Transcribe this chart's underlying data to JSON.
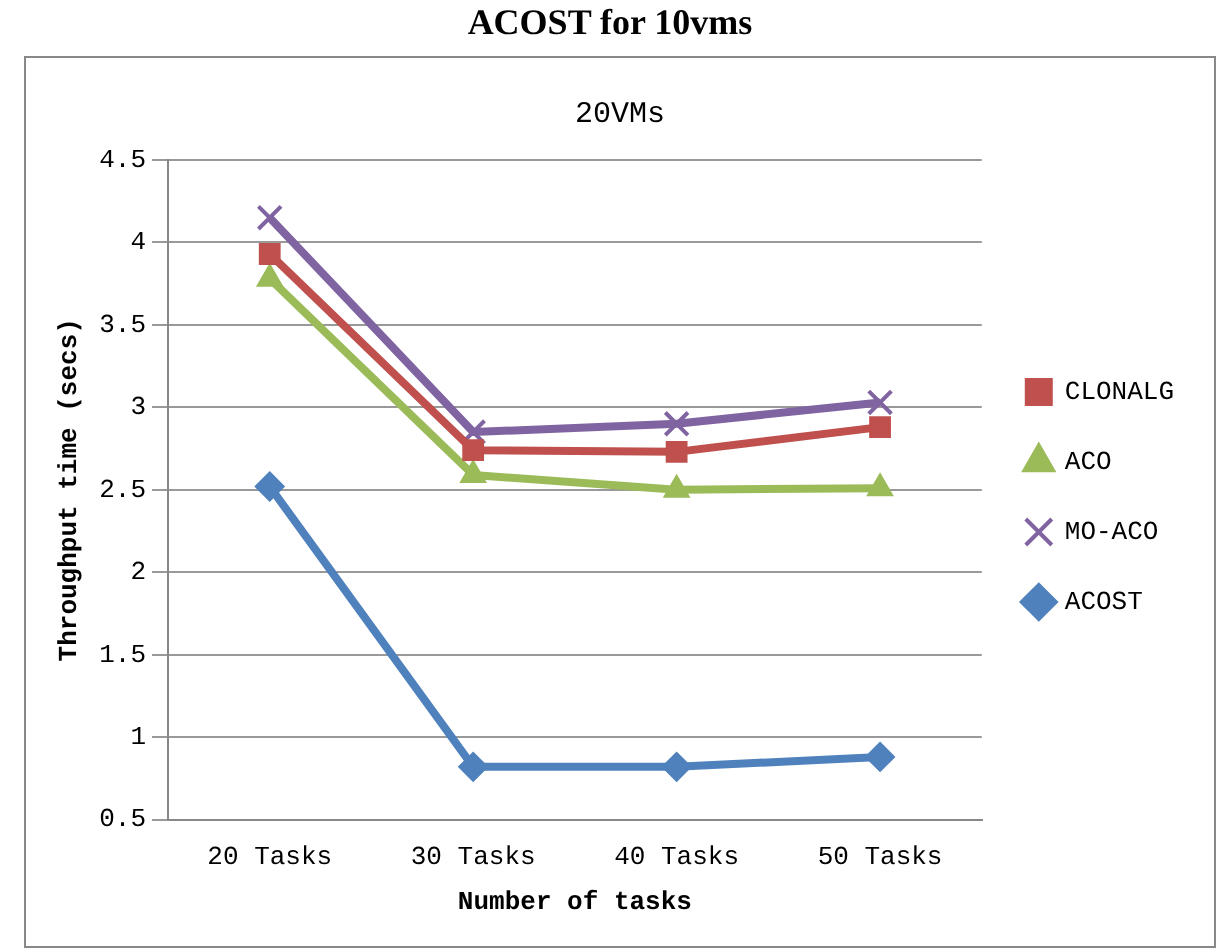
{
  "chart_data": {
    "type": "line",
    "title": "20VMs",
    "xlabel": "Number of tasks",
    "ylabel": "Throughput time (secs)",
    "annotations": [
      "ACOST for 10vms"
    ],
    "categories": [
      "20 Tasks",
      "30 Tasks",
      "40 Tasks",
      "50 Tasks"
    ],
    "ylim": [
      0.5,
      4.5
    ],
    "yticks": [
      0.5,
      1,
      1.5,
      2,
      2.5,
      3,
      3.5,
      4,
      4.5
    ],
    "grid": "y",
    "legend": "right",
    "series": [
      {
        "name": "CLONALG",
        "color": "#c0504d",
        "marker": "square",
        "values": [
          3.93,
          2.74,
          2.73,
          2.88
        ]
      },
      {
        "name": "ACO",
        "color": "#9bbb59",
        "marker": "triangle",
        "values": [
          3.78,
          2.59,
          2.5,
          2.51
        ]
      },
      {
        "name": "MO-ACO",
        "color": "#8064a2",
        "marker": "cross",
        "values": [
          4.15,
          2.85,
          2.9,
          3.03
        ]
      },
      {
        "name": "ACOST",
        "color": "#4f81bd",
        "marker": "diamond",
        "values": [
          2.52,
          0.82,
          0.82,
          0.88
        ]
      }
    ]
  }
}
